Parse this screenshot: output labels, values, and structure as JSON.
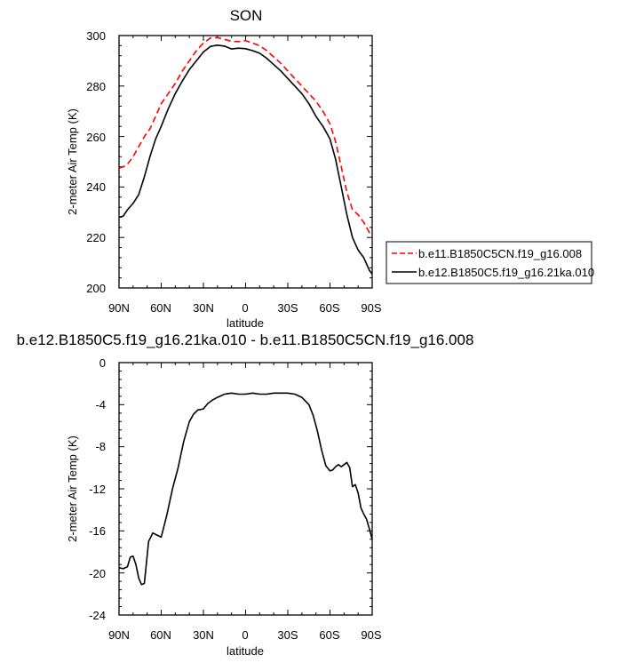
{
  "chart_data": [
    {
      "type": "line",
      "title": "SON",
      "xlabel": "latitude",
      "ylabel": "2-meter Air Temp (K)",
      "xlim": [
        90,
        -90
      ],
      "ylim": [
        200,
        300
      ],
      "xticks": [
        90,
        60,
        30,
        0,
        -30,
        -60,
        -90
      ],
      "xtick_labels": [
        "90N",
        "60N",
        "30N",
        "0",
        "30S",
        "60S",
        "90S"
      ],
      "yticks": [
        200,
        220,
        240,
        260,
        280,
        300
      ],
      "ytick_labels": [
        "200",
        "220",
        "240",
        "260",
        "280",
        "300"
      ],
      "legend_position": "right",
      "series": [
        {
          "name": "b.e11.B1850C5CN.f19_g16.008",
          "color": "#ff0000",
          "dash": "dashed",
          "x": [
            90,
            87,
            84,
            80,
            76,
            72,
            68,
            64,
            60,
            55,
            50,
            45,
            40,
            35,
            30,
            25,
            20,
            15,
            10,
            5,
            0,
            -5,
            -10,
            -15,
            -20,
            -25,
            -30,
            -35,
            -40,
            -45,
            -50,
            -55,
            -60,
            -64,
            -68,
            -72,
            -76,
            -80,
            -84,
            -88,
            -90
          ],
          "y": [
            247.5,
            248,
            249,
            252,
            256,
            260,
            263,
            268,
            273,
            277,
            281,
            286,
            290,
            294,
            297,
            299,
            299.2,
            298.5,
            297.7,
            297.6,
            298,
            297,
            296,
            294,
            291.5,
            289,
            286,
            283,
            280,
            277,
            274,
            270,
            265,
            258,
            248,
            238,
            231,
            229,
            226,
            222,
            221
          ]
        },
        {
          "name": "b.e12.B1850C5.f19_g16.21ka.010",
          "color": "#000000",
          "dash": "solid",
          "x": [
            90,
            87,
            84,
            80,
            76,
            72,
            68,
            64,
            60,
            55,
            50,
            45,
            40,
            35,
            30,
            25,
            20,
            15,
            10,
            5,
            0,
            -5,
            -10,
            -15,
            -20,
            -25,
            -30,
            -35,
            -40,
            -45,
            -50,
            -55,
            -60,
            -64,
            -68,
            -72,
            -76,
            -80,
            -84,
            -88,
            -90
          ],
          "y": [
            228,
            228.5,
            231,
            233.5,
            237,
            244,
            252,
            259,
            264,
            271,
            277,
            282,
            286.5,
            290,
            293.5,
            295.7,
            296.2,
            295.8,
            294.7,
            295,
            294.8,
            294,
            293,
            291,
            288.5,
            286,
            283,
            280,
            277,
            273,
            268,
            264,
            259,
            251,
            240,
            229,
            220,
            215,
            212,
            207,
            205.5
          ]
        }
      ]
    },
    {
      "type": "line",
      "title": "b.e12.B1850C5.f19_g16.21ka.010 - b.e11.B1850C5CN.f19_g16.008",
      "xlabel": "latitude",
      "ylabel": "2-meter Air Temp (K)",
      "xlim": [
        90,
        -90
      ],
      "ylim": [
        -24,
        0
      ],
      "xticks": [
        90,
        60,
        30,
        0,
        -30,
        -60,
        -90
      ],
      "xtick_labels": [
        "90N",
        "60N",
        "30N",
        "0",
        "30S",
        "60S",
        "90S"
      ],
      "yticks": [
        0,
        -4,
        -8,
        -12,
        -16,
        -20,
        -24
      ],
      "ytick_labels": [
        "0",
        "-4",
        "-8",
        "-12",
        "-16",
        "-20",
        "-24"
      ],
      "series": [
        {
          "color": "#000000",
          "dash": "solid",
          "x": [
            90,
            87,
            84,
            82,
            80,
            78,
            76,
            74,
            72,
            69,
            66,
            63,
            60,
            56,
            52,
            48,
            44,
            40,
            37,
            34,
            30,
            27,
            24,
            20,
            15,
            10,
            5,
            0,
            -5,
            -10,
            -15,
            -20,
            -25,
            -30,
            -35,
            -40,
            -45,
            -48,
            -51,
            -54,
            -57,
            -60,
            -62,
            -64,
            -66,
            -68,
            -70,
            -72,
            -74,
            -76,
            -78,
            -80,
            -82,
            -84,
            -86,
            -88,
            -90
          ],
          "y": [
            -19.5,
            -19.6,
            -19.4,
            -18.5,
            -18.4,
            -19.2,
            -20.5,
            -21.1,
            -21,
            -17,
            -16.2,
            -16.4,
            -16.6,
            -14.5,
            -12,
            -10,
            -7.5,
            -5.6,
            -4.9,
            -4.5,
            -4.4,
            -3.9,
            -3.6,
            -3.3,
            -3,
            -2.9,
            -3,
            -3,
            -2.9,
            -3,
            -3,
            -2.9,
            -2.9,
            -2.9,
            -3,
            -3.3,
            -4,
            -5,
            -6.5,
            -8.3,
            -9.8,
            -10.3,
            -10.2,
            -9.9,
            -9.7,
            -9.9,
            -9.7,
            -9.5,
            -10,
            -11.8,
            -11.6,
            -12.4,
            -13.8,
            -14.4,
            -14.9,
            -15.8,
            -16.8
          ]
        }
      ]
    }
  ]
}
